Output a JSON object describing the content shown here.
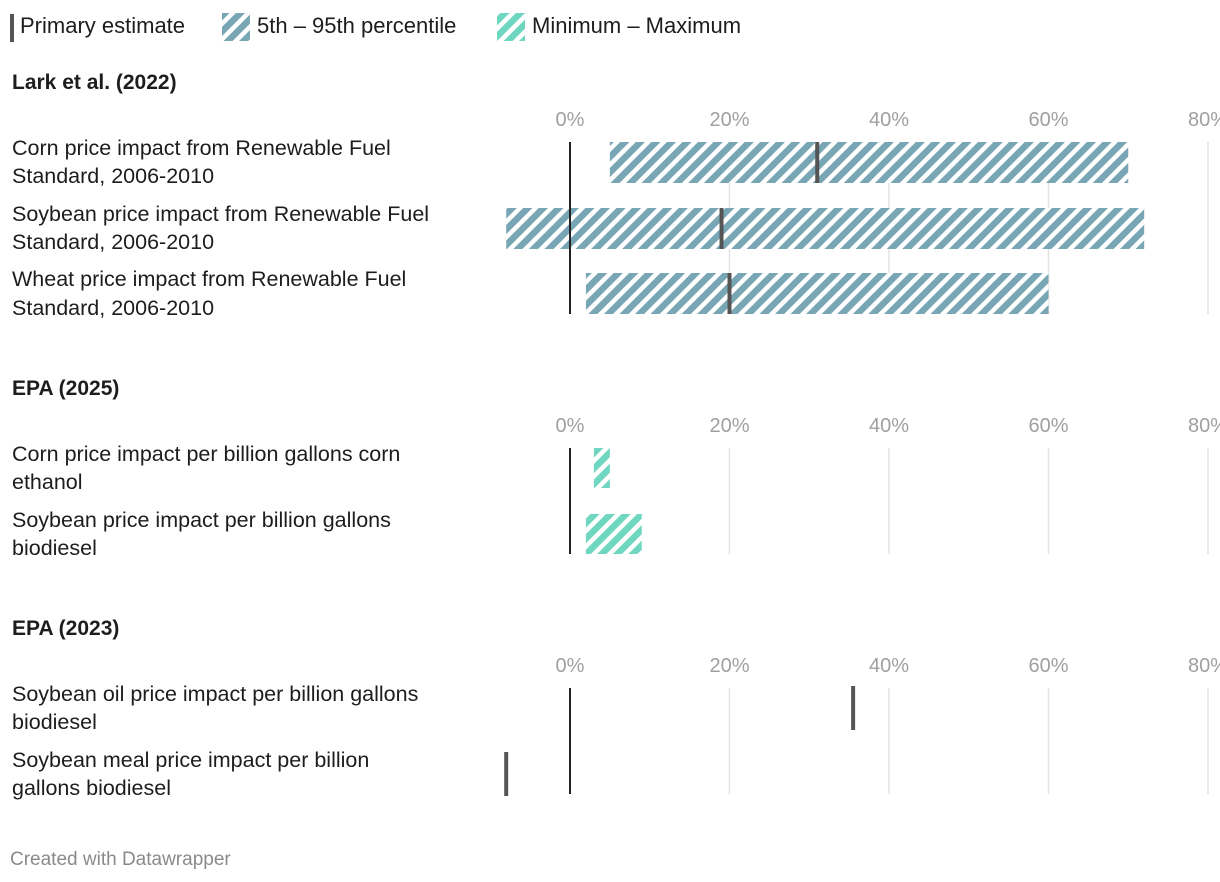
{
  "chart_data": {
    "type": "range-bar",
    "title": "",
    "legend": [
      {
        "key": "primary",
        "label": "Primary estimate",
        "color": "#555555"
      },
      {
        "key": "pct",
        "label": "5th – 95th percentile",
        "color": "#78a6b4"
      },
      {
        "key": "minmax",
        "label": "Minimum – Maximum",
        "color": "#6fd7c0"
      }
    ],
    "x_ticks": [
      0,
      20,
      40,
      60,
      80
    ],
    "x_tick_labels": [
      "0%",
      "20%",
      "40%",
      "60%",
      "80%"
    ],
    "xlim": [
      -8,
      80
    ],
    "sections": [
      {
        "title": "Lark et al. (2022)",
        "rows": [
          {
            "label": [
              "Corn price impact from Renewable Fuel",
              "Standard, 2006-2010"
            ],
            "range_type": "pct",
            "low": 5,
            "high": 70,
            "primary": 31
          },
          {
            "label": [
              "Soybean price impact from Renewable Fuel",
              "Standard, 2006-2010"
            ],
            "range_type": "pct",
            "low": -8,
            "high": 72,
            "primary": 19
          },
          {
            "label": [
              "Wheat price impact from Renewable Fuel",
              "Standard, 2006-2010"
            ],
            "range_type": "pct",
            "low": 2,
            "high": 60,
            "primary": 20
          }
        ]
      },
      {
        "title": "EPA (2025)",
        "rows": [
          {
            "label": [
              "Corn price impact per billion gallons corn",
              "ethanol"
            ],
            "range_type": "minmax",
            "low": 3,
            "high": 5,
            "primary": null
          },
          {
            "label": [
              "Soybean price impact per billion gallons",
              "biodiesel"
            ],
            "range_type": "minmax",
            "low": 2,
            "high": 9,
            "primary": null
          }
        ]
      },
      {
        "title": "EPA (2023)",
        "rows": [
          {
            "label": [
              "Soybean oil price impact per billion gallons",
              "biodiesel"
            ],
            "range_type": null,
            "low": null,
            "high": null,
            "primary": 35.5
          },
          {
            "label": [
              "Soybean meal price impact per billion",
              "gallons biodiesel"
            ],
            "range_type": null,
            "low": null,
            "high": null,
            "primary": -8
          }
        ]
      }
    ]
  },
  "footer": {
    "credit": "Created with Datawrapper"
  },
  "colors": {
    "grid": "#e3e3e3",
    "zero_line": "#222222",
    "primary_mark": "#555555"
  }
}
